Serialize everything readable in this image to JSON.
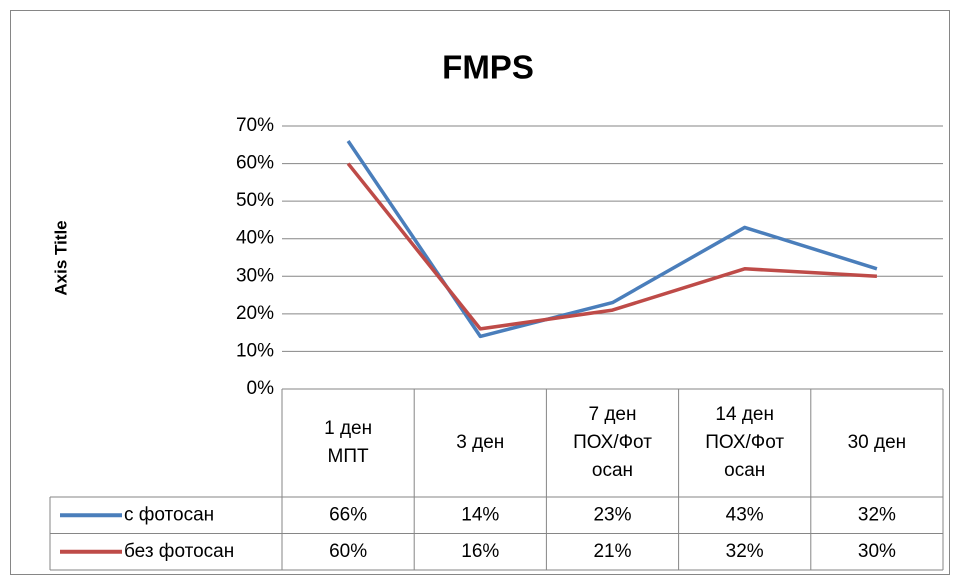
{
  "chart_data": {
    "type": "line",
    "title": "FMPS",
    "y_label": "Axis Title",
    "categories": [
      "1 ден\nМПТ",
      "3 ден",
      "7 ден\nПОХ/Фот\nосан",
      "14 ден\nПОХ/Фот\nосан",
      "30 ден"
    ],
    "series": [
      {
        "name": "с фотосан",
        "color": "#4a7ebb",
        "values": [
          66,
          14,
          23,
          43,
          32
        ],
        "value_labels": [
          "66%",
          "14%",
          "23%",
          "43%",
          "32%"
        ]
      },
      {
        "name": "без фотосан",
        "color": "#be4b48",
        "values": [
          60,
          16,
          21,
          32,
          30
        ],
        "value_labels": [
          "60%",
          "16%",
          "21%",
          "32%",
          "30%"
        ]
      }
    ],
    "ylim": [
      0,
      70
    ],
    "yticks": [
      {
        "value": 0,
        "label": "0%"
      },
      {
        "value": 10,
        "label": "10%"
      },
      {
        "value": 20,
        "label": "20%"
      },
      {
        "value": 30,
        "label": "30%"
      },
      {
        "value": 40,
        "label": "40%"
      },
      {
        "value": 50,
        "label": "50%"
      },
      {
        "value": 60,
        "label": "60%"
      },
      {
        "value": 70,
        "label": "70%"
      }
    ],
    "grid": true,
    "data_table": true
  }
}
